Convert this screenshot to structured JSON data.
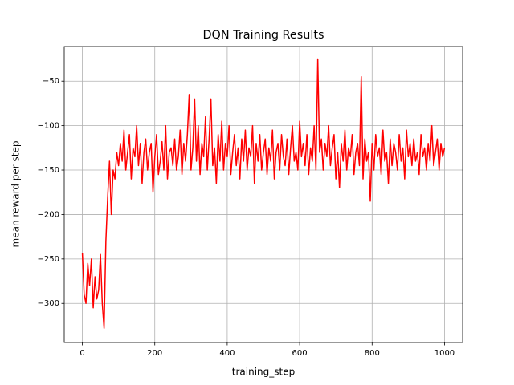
{
  "chart_data": {
    "type": "line",
    "title": "DQN Training Results",
    "xlabel": "training_step",
    "ylabel": "mean reward per step",
    "color": "#ff0000",
    "grid": true,
    "xlim": [
      -50,
      1050
    ],
    "ylim": [
      -344,
      -11
    ],
    "xticks": [
      0,
      200,
      400,
      600,
      800,
      1000
    ],
    "yticks": [
      {
        "value": -300,
        "label": "−300"
      },
      {
        "value": -250,
        "label": "−250"
      },
      {
        "value": -200,
        "label": "−200"
      },
      {
        "value": -150,
        "label": "−150"
      },
      {
        "value": -100,
        "label": "−100"
      },
      {
        "value": -50,
        "label": "−50"
      }
    ],
    "x": [
      0,
      5,
      10,
      15,
      20,
      25,
      30,
      35,
      40,
      45,
      50,
      55,
      60,
      65,
      70,
      75,
      80,
      85,
      90,
      95,
      100,
      105,
      110,
      115,
      120,
      125,
      130,
      135,
      140,
      145,
      150,
      155,
      160,
      165,
      170,
      175,
      180,
      185,
      190,
      195,
      200,
      205,
      210,
      215,
      220,
      225,
      230,
      235,
      240,
      245,
      250,
      255,
      260,
      265,
      270,
      275,
      280,
      285,
      290,
      295,
      300,
      305,
      310,
      315,
      320,
      325,
      330,
      335,
      340,
      345,
      350,
      355,
      360,
      365,
      370,
      375,
      380,
      385,
      390,
      395,
      400,
      405,
      410,
      415,
      420,
      425,
      430,
      435,
      440,
      445,
      450,
      455,
      460,
      465,
      470,
      475,
      480,
      485,
      490,
      495,
      500,
      505,
      510,
      515,
      520,
      525,
      530,
      535,
      540,
      545,
      550,
      555,
      560,
      565,
      570,
      575,
      580,
      585,
      590,
      595,
      600,
      605,
      610,
      615,
      620,
      625,
      630,
      635,
      640,
      645,
      650,
      655,
      660,
      665,
      670,
      675,
      680,
      685,
      690,
      695,
      700,
      705,
      710,
      715,
      720,
      725,
      730,
      735,
      740,
      745,
      750,
      755,
      760,
      765,
      770,
      775,
      780,
      785,
      790,
      795,
      800,
      805,
      810,
      815,
      820,
      825,
      830,
      835,
      840,
      845,
      850,
      855,
      860,
      865,
      870,
      875,
      880,
      885,
      890,
      895,
      900,
      905,
      910,
      915,
      920,
      925,
      930,
      935,
      940,
      945,
      950,
      955,
      960,
      965,
      970,
      975,
      980,
      985,
      990,
      995,
      1000
    ],
    "values": [
      -243,
      -290,
      -300,
      -255,
      -280,
      -250,
      -305,
      -270,
      -295,
      -285,
      -245,
      -300,
      -328,
      -230,
      -180,
      -140,
      -200,
      -150,
      -160,
      -130,
      -145,
      -120,
      -140,
      -105,
      -150,
      -130,
      -110,
      -160,
      -125,
      -135,
      -100,
      -145,
      -120,
      -165,
      -130,
      -115,
      -150,
      -130,
      -120,
      -175,
      -135,
      -110,
      -155,
      -140,
      -118,
      -150,
      -100,
      -160,
      -130,
      -125,
      -145,
      -115,
      -150,
      -135,
      -105,
      -155,
      -120,
      -140,
      -110,
      -65,
      -150,
      -125,
      -70,
      -140,
      -100,
      -155,
      -120,
      -135,
      -90,
      -150,
      -115,
      -70,
      -145,
      -125,
      -165,
      -110,
      -140,
      -95,
      -150,
      -120,
      -135,
      -100,
      -155,
      -130,
      -110,
      -145,
      -125,
      -160,
      -115,
      -140,
      -105,
      -150,
      -125,
      -135,
      -100,
      -165,
      -120,
      -140,
      -110,
      -150,
      -130,
      -115,
      -155,
      -125,
      -140,
      -105,
      -160,
      -130,
      -120,
      -150,
      -110,
      -135,
      -145,
      -115,
      -155,
      -125,
      -100,
      -140,
      -130,
      -150,
      -95,
      -135,
      -120,
      -145,
      -110,
      -155,
      -125,
      -140,
      -100,
      -150,
      -25,
      -130,
      -115,
      -150,
      -120,
      -135,
      -100,
      -145,
      -125,
      -110,
      -160,
      -130,
      -170,
      -120,
      -140,
      -105,
      -150,
      -125,
      -135,
      -110,
      -155,
      -130,
      -120,
      -145,
      -45,
      -160,
      -115,
      -140,
      -130,
      -185,
      -120,
      -150,
      -110,
      -135,
      -125,
      -155,
      -105,
      -140,
      -130,
      -165,
      -115,
      -145,
      -120,
      -130,
      -150,
      -110,
      -140,
      -125,
      -160,
      -105,
      -135,
      -120,
      -145,
      -115,
      -140,
      -130,
      -155,
      -110,
      -135,
      -125,
      -150,
      -120,
      -140,
      -100,
      -145,
      -130,
      -115,
      -150,
      -120,
      -135,
      -125
    ]
  }
}
